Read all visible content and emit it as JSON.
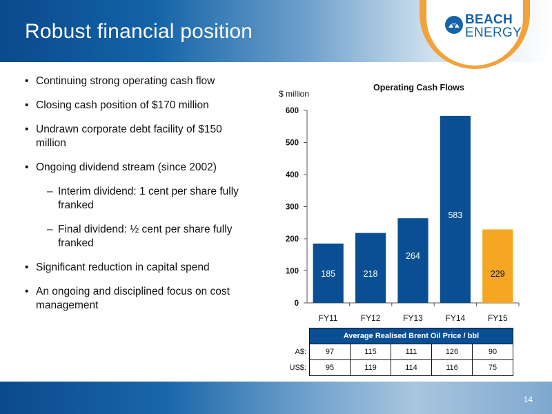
{
  "slide": {
    "title": "Robust financial position",
    "page_number": "14"
  },
  "logo": {
    "line1": "BEACH",
    "line2": "ENERGY",
    "color": "#1463a8",
    "accent": "#f2a23a"
  },
  "bullets": [
    {
      "text": "Continuing strong operating cash flow"
    },
    {
      "text": "Closing cash position of $170 million"
    },
    {
      "text": "Undrawn corporate debt facility of $150 million"
    },
    {
      "text": "Ongoing dividend stream (since 2002)"
    },
    {
      "text": "Interim dividend: 1 cent per share fully franked",
      "sub": true
    },
    {
      "text": "Final dividend: ½ cent per share fully franked",
      "sub": true
    },
    {
      "text": "Significant reduction in capital spend"
    },
    {
      "text": "An ongoing and disciplined focus on cost management"
    }
  ],
  "chart_data": {
    "type": "bar",
    "title": "Operating Cash Flows",
    "ylabel": "$ million",
    "xlabel": "",
    "categories": [
      "FY11",
      "FY12",
      "FY13",
      "FY14",
      "FY15"
    ],
    "values": [
      185,
      218,
      264,
      583,
      229
    ],
    "colors": [
      "#0a4f94",
      "#0a4f94",
      "#0a4f94",
      "#0a4f94",
      "#f5a623"
    ],
    "ylim": [
      0,
      600
    ],
    "yticks": [
      0,
      100,
      200,
      300,
      400,
      500,
      600
    ],
    "grid": false,
    "legend": "none"
  },
  "price_table": {
    "header": "Average Realised Brent Oil Price / bbl",
    "rows": [
      {
        "label": "A$:",
        "values": [
          "97",
          "115",
          "111",
          "126",
          "90"
        ]
      },
      {
        "label": "US$:",
        "values": [
          "95",
          "119",
          "114",
          "116",
          "75"
        ]
      }
    ]
  }
}
